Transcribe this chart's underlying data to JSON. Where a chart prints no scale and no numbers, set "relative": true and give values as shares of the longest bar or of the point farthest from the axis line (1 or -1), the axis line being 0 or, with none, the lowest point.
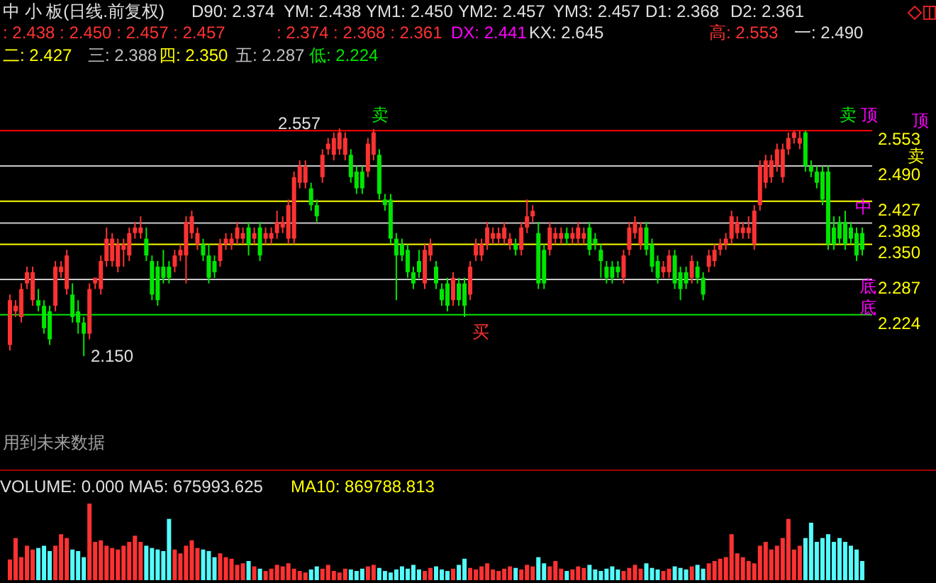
{
  "chart_data": [
    {
      "type": "candlestick",
      "title": "中 小 板(日线.前复权)",
      "categories": [
        null,
        null,
        null,
        null,
        null,
        null,
        null,
        null,
        null,
        null,
        null,
        null,
        null,
        null,
        null,
        null,
        null,
        null,
        null,
        null,
        null,
        null,
        null,
        null,
        null,
        null,
        null,
        null,
        null,
        null,
        null,
        null,
        null,
        null,
        null,
        null,
        null,
        null,
        null,
        null,
        null,
        null,
        null,
        null,
        null,
        null,
        null,
        null,
        null,
        null,
        null,
        null,
        null,
        null,
        null,
        null,
        null,
        null,
        null,
        null,
        null,
        null,
        null,
        null,
        null,
        null,
        null,
        null,
        null,
        null,
        null,
        null,
        null,
        null,
        null,
        null,
        null,
        null,
        null,
        null,
        null,
        null,
        null,
        null,
        null,
        null,
        null,
        null,
        null,
        null,
        null,
        null,
        null,
        null,
        null,
        null,
        null,
        null,
        null,
        null,
        null,
        null,
        null,
        null,
        null,
        null,
        null,
        null,
        null,
        null,
        null,
        null,
        null,
        null,
        null,
        null,
        null,
        null,
        null,
        null,
        null,
        null,
        null,
        null,
        null,
        null,
        null,
        null,
        null,
        null,
        null,
        null,
        null,
        null,
        null,
        null,
        null,
        null,
        null,
        null,
        null,
        null,
        null,
        null,
        null,
        null,
        null,
        null,
        null,
        null,
        null
      ],
      "ohlc": [
        [
          2.17,
          2.26,
          2.16,
          2.25
        ],
        [
          2.23,
          2.25,
          2.22,
          2.24
        ],
        [
          2.22,
          2.28,
          2.21,
          2.27
        ],
        [
          2.28,
          2.31,
          2.27,
          2.3
        ],
        [
          2.25,
          2.31,
          2.24,
          2.3
        ],
        [
          2.25,
          2.27,
          2.23,
          2.24
        ],
        [
          2.24,
          2.25,
          2.19,
          2.2
        ],
        [
          2.23,
          2.24,
          2.17,
          2.18
        ],
        [
          2.24,
          2.32,
          2.23,
          2.31
        ],
        [
          2.3,
          2.32,
          2.29,
          2.31
        ],
        [
          2.27,
          2.34,
          2.26,
          2.33
        ],
        [
          2.26,
          2.28,
          2.21,
          2.22
        ],
        [
          2.23,
          2.25,
          2.19,
          2.21
        ],
        [
          2.21,
          2.22,
          2.15,
          2.19
        ],
        [
          2.19,
          2.28,
          2.18,
          2.27
        ],
        [
          2.28,
          2.29,
          2.27,
          2.29
        ],
        [
          2.27,
          2.33,
          2.26,
          2.32
        ],
        [
          2.32,
          2.38,
          2.31,
          2.36
        ],
        [
          2.32,
          2.37,
          2.31,
          2.36
        ],
        [
          2.31,
          2.36,
          2.3,
          2.35
        ],
        [
          2.34,
          2.36,
          2.31,
          2.35
        ],
        [
          2.33,
          2.38,
          2.32,
          2.37
        ],
        [
          2.37,
          2.39,
          2.36,
          2.38
        ],
        [
          2.37,
          2.4,
          2.36,
          2.38
        ],
        [
          2.36,
          2.38,
          2.32,
          2.33
        ],
        [
          2.32,
          2.33,
          2.25,
          2.26
        ],
        [
          2.31,
          2.32,
          2.24,
          2.25
        ],
        [
          2.31,
          2.34,
          2.28,
          2.29
        ],
        [
          2.31,
          2.32,
          2.28,
          2.29
        ],
        [
          2.31,
          2.34,
          2.3,
          2.33
        ],
        [
          2.33,
          2.35,
          2.32,
          2.34
        ],
        [
          2.33,
          2.4,
          2.28,
          2.39
        ],
        [
          2.37,
          2.41,
          2.36,
          2.4
        ],
        [
          2.35,
          2.38,
          2.34,
          2.37
        ],
        [
          2.35,
          2.36,
          2.32,
          2.33
        ],
        [
          2.33,
          2.35,
          2.28,
          2.29
        ],
        [
          2.32,
          2.33,
          2.29,
          2.3
        ],
        [
          2.32,
          2.36,
          2.31,
          2.35
        ],
        [
          2.35,
          2.37,
          2.34,
          2.36
        ],
        [
          2.35,
          2.37,
          2.34,
          2.36
        ],
        [
          2.36,
          2.39,
          2.35,
          2.38
        ],
        [
          2.36,
          2.38,
          2.35,
          2.37
        ],
        [
          2.38,
          2.39,
          2.33,
          2.35
        ],
        [
          2.36,
          2.38,
          2.35,
          2.37
        ],
        [
          2.38,
          2.39,
          2.32,
          2.33
        ],
        [
          2.36,
          2.38,
          2.35,
          2.37
        ],
        [
          2.36,
          2.38,
          2.35,
          2.37
        ],
        [
          2.37,
          2.41,
          2.36,
          2.39
        ],
        [
          2.38,
          2.4,
          2.37,
          2.39
        ],
        [
          2.36,
          2.43,
          2.35,
          2.42
        ],
        [
          2.36,
          2.48,
          2.35,
          2.47
        ],
        [
          2.46,
          2.5,
          2.45,
          2.49
        ],
        [
          2.46,
          2.5,
          2.45,
          2.49
        ],
        [
          2.45,
          2.46,
          2.41,
          2.42
        ],
        [
          2.42,
          2.43,
          2.39,
          2.4
        ],
        [
          2.47,
          2.52,
          2.46,
          2.51
        ],
        [
          2.52,
          2.54,
          2.51,
          2.53
        ],
        [
          2.51,
          2.55,
          2.5,
          2.54
        ],
        [
          2.52,
          2.557,
          2.51,
          2.55
        ],
        [
          2.51,
          2.55,
          2.5,
          2.54
        ],
        [
          2.51,
          2.52,
          2.46,
          2.47
        ],
        [
          2.48,
          2.49,
          2.44,
          2.45
        ],
        [
          2.48,
          2.49,
          2.44,
          2.45
        ],
        [
          2.48,
          2.54,
          2.47,
          2.53
        ],
        [
          2.51,
          2.556,
          2.5,
          2.55
        ],
        [
          2.51,
          2.52,
          2.43,
          2.44
        ],
        [
          2.43,
          2.44,
          2.41,
          2.42
        ],
        [
          2.43,
          2.44,
          2.35,
          2.36
        ],
        [
          2.36,
          2.37,
          2.25,
          2.33
        ],
        [
          2.35,
          2.36,
          2.32,
          2.33
        ],
        [
          2.34,
          2.35,
          2.29,
          2.3
        ],
        [
          2.3,
          2.31,
          2.27,
          2.28
        ],
        [
          2.32,
          2.34,
          2.29,
          2.3
        ],
        [
          2.28,
          2.35,
          2.27,
          2.34
        ],
        [
          2.33,
          2.36,
          2.32,
          2.35
        ],
        [
          2.31,
          2.32,
          2.27,
          2.28
        ],
        [
          2.27,
          2.28,
          2.24,
          2.25
        ],
        [
          2.28,
          2.29,
          2.23,
          2.24
        ],
        [
          2.25,
          2.3,
          2.24,
          2.29
        ],
        [
          2.28,
          2.29,
          2.24,
          2.25
        ],
        [
          2.28,
          2.29,
          2.22,
          2.24
        ],
        [
          2.26,
          2.32,
          2.25,
          2.31
        ],
        [
          2.33,
          2.36,
          2.32,
          2.35
        ],
        [
          2.33,
          2.36,
          2.32,
          2.35
        ],
        [
          2.35,
          2.39,
          2.34,
          2.38
        ],
        [
          2.36,
          2.38,
          2.35,
          2.37
        ],
        [
          2.36,
          2.38,
          2.35,
          2.37
        ],
        [
          2.36,
          2.39,
          2.35,
          2.38
        ],
        [
          2.35,
          2.37,
          2.34,
          2.36
        ],
        [
          2.35,
          2.36,
          2.33,
          2.34
        ],
        [
          2.34,
          2.39,
          2.33,
          2.38
        ],
        [
          2.38,
          2.43,
          2.37,
          2.4
        ],
        [
          2.4,
          2.42,
          2.39,
          2.41
        ],
        [
          2.37,
          2.39,
          2.27,
          2.28
        ],
        [
          2.34,
          2.35,
          2.27,
          2.28
        ],
        [
          2.34,
          2.39,
          2.33,
          2.38
        ],
        [
          2.36,
          2.38,
          2.35,
          2.37
        ],
        [
          2.36,
          2.38,
          2.35,
          2.37
        ],
        [
          2.37,
          2.38,
          2.35,
          2.36
        ],
        [
          2.36,
          2.38,
          2.35,
          2.37
        ],
        [
          2.36,
          2.39,
          2.35,
          2.38
        ],
        [
          2.36,
          2.38,
          2.35,
          2.37
        ],
        [
          2.38,
          2.39,
          2.33,
          2.34
        ],
        [
          2.36,
          2.37,
          2.34,
          2.35
        ],
        [
          2.34,
          2.35,
          2.29,
          2.32
        ],
        [
          2.31,
          2.32,
          2.28,
          2.29
        ],
        [
          2.31,
          2.32,
          2.28,
          2.29
        ],
        [
          2.31,
          2.32,
          2.29,
          2.3
        ],
        [
          2.29,
          2.34,
          2.28,
          2.33
        ],
        [
          2.34,
          2.39,
          2.33,
          2.38
        ],
        [
          2.37,
          2.4,
          2.36,
          2.39
        ],
        [
          2.35,
          2.39,
          2.34,
          2.38
        ],
        [
          2.38,
          2.39,
          2.33,
          2.34
        ],
        [
          2.35,
          2.36,
          2.3,
          2.31
        ],
        [
          2.32,
          2.33,
          2.28,
          2.29
        ],
        [
          2.3,
          2.32,
          2.29,
          2.31
        ],
        [
          2.3,
          2.34,
          2.29,
          2.33
        ],
        [
          2.33,
          2.34,
          2.27,
          2.28
        ],
        [
          2.3,
          2.31,
          2.25,
          2.27
        ],
        [
          2.3,
          2.31,
          2.27,
          2.28
        ],
        [
          2.29,
          2.33,
          2.28,
          2.32
        ],
        [
          2.31,
          2.32,
          2.28,
          2.29
        ],
        [
          2.29,
          2.3,
          2.25,
          2.26
        ],
        [
          2.31,
          2.34,
          2.3,
          2.33
        ],
        [
          2.32,
          2.35,
          2.31,
          2.34
        ],
        [
          2.34,
          2.36,
          2.33,
          2.35
        ],
        [
          2.35,
          2.37,
          2.34,
          2.36
        ],
        [
          2.36,
          2.41,
          2.35,
          2.4
        ],
        [
          2.37,
          2.4,
          2.36,
          2.39
        ],
        [
          2.37,
          2.39,
          2.36,
          2.38
        ],
        [
          2.37,
          2.4,
          2.36,
          2.38
        ],
        [
          2.35,
          2.42,
          2.34,
          2.41
        ],
        [
          2.42,
          2.5,
          2.41,
          2.49
        ],
        [
          2.46,
          2.51,
          2.45,
          2.5
        ],
        [
          2.47,
          2.51,
          2.46,
          2.5
        ],
        [
          2.49,
          2.53,
          2.48,
          2.52
        ],
        [
          2.47,
          2.53,
          2.46,
          2.52
        ],
        [
          2.52,
          2.55,
          2.51,
          2.54
        ],
        [
          2.54,
          2.553,
          2.53,
          2.55
        ],
        [
          2.53,
          2.553,
          2.52,
          2.54
        ],
        [
          2.55,
          2.553,
          2.48,
          2.49
        ],
        [
          2.49,
          2.5,
          2.47,
          2.48
        ],
        [
          2.48,
          2.49,
          2.45,
          2.46
        ],
        [
          2.48,
          2.49,
          2.42,
          2.43
        ],
        [
          2.48,
          2.49,
          2.34,
          2.35
        ],
        [
          2.38,
          2.4,
          2.34,
          2.35
        ],
        [
          2.39,
          2.4,
          2.35,
          2.36
        ],
        [
          2.39,
          2.41,
          2.34,
          2.35
        ],
        [
          2.38,
          2.39,
          2.35,
          2.36
        ],
        [
          2.37,
          2.38,
          2.32,
          2.33
        ],
        [
          2.37,
          2.38,
          2.33,
          2.34
        ]
      ],
      "colors": [
        "#ff3232",
        "#ff3232",
        "#ff3232",
        "#ff3232",
        "#ff3232",
        "#00e600",
        "#00e600",
        "#00e600",
        "#ff3232",
        "#ff3232",
        "#ff3232",
        "#00e600",
        "#00e600",
        "#00e600",
        "#ff3232",
        "#ff3232",
        "#ff3232",
        "#ff3232",
        "#ff3232",
        "#ff3232",
        "#ff3232",
        "#ff3232",
        "#ff3232",
        "#ff3232",
        "#00e600",
        "#00e600",
        "#00e600",
        "#00e600",
        "#00e600",
        "#ff3232",
        "#ff3232",
        "#ff3232",
        "#ff3232",
        "#ff3232",
        "#00e600",
        "#00e600",
        "#00e600",
        "#ff3232",
        "#ff3232",
        "#ff3232",
        "#ff3232",
        "#ff3232",
        "#00e600",
        "#ff3232",
        "#00e600",
        "#ff3232",
        "#ff3232",
        "#ff3232",
        "#ff3232",
        "#ff3232",
        "#ff3232",
        "#ff3232",
        "#ff3232",
        "#00e600",
        "#00e600",
        "#ff3232",
        "#ff3232",
        "#ff3232",
        "#ff3232",
        "#ff3232",
        "#00e600",
        "#00e600",
        "#00e600",
        "#ff3232",
        "#ff3232",
        "#00e600",
        "#00e600",
        "#00e600",
        "#00e600",
        "#00e600",
        "#00e600",
        "#00e600",
        "#00e600",
        "#ff3232",
        "#ff3232",
        "#00e600",
        "#00e600",
        "#00e600",
        "#ff3232",
        "#00e600",
        "#00e600",
        "#ff3232",
        "#ff3232",
        "#ff3232",
        "#ff3232",
        "#ff3232",
        "#ff3232",
        "#ff3232",
        "#ff3232",
        "#00e600",
        "#ff3232",
        "#ff3232",
        "#ff3232",
        "#00e600",
        "#00e600",
        "#ff3232",
        "#ff3232",
        "#ff3232",
        "#00e600",
        "#ff3232",
        "#ff3232",
        "#ff3232",
        "#00e600",
        "#00e600",
        "#00e600",
        "#00e600",
        "#00e600",
        "#00e600",
        "#ff3232",
        "#ff3232",
        "#ff3232",
        "#ff3232",
        "#00e600",
        "#00e600",
        "#00e600",
        "#ff3232",
        "#ff3232",
        "#00e600",
        "#00e600",
        "#00e600",
        "#ff3232",
        "#00e600",
        "#00e600",
        "#ff3232",
        "#ff3232",
        "#ff3232",
        "#ff3232",
        "#ff3232",
        "#ff3232",
        "#ff3232",
        "#ff3232",
        "#ff3232",
        "#ff3232",
        "#ff3232",
        "#ff3232",
        "#ff3232",
        "#ff3232",
        "#ff3232",
        "#ff3232",
        "#ff3232",
        "#00e600",
        "#00e600",
        "#00e600",
        "#00e600",
        "#00e600",
        "#00e600",
        "#00e600",
        "#00e600",
        "#00e600",
        "#00e600",
        "#00e600"
      ],
      "ylim": [
        1.97,
        2.66
      ],
      "ref_lines": [
        {
          "axis": "y",
          "value": 2.553,
          "label": "2.553",
          "color": "#ff0000"
        },
        {
          "axis": "y",
          "value": 2.49,
          "label": "2.490",
          "color": "#c8c8c8"
        },
        {
          "axis": "y",
          "value": 2.427,
          "label": "2.427",
          "color": "#ffff00"
        },
        {
          "axis": "y",
          "value": 2.388,
          "label": "2.388",
          "color": "#c8c8c8"
        },
        {
          "axis": "y",
          "value": 2.35,
          "label": "2.350",
          "color": "#ffff00"
        },
        {
          "axis": "y",
          "value": 2.287,
          "label": "2.287",
          "color": "#c8c8c8"
        },
        {
          "axis": "y",
          "value": 2.224,
          "label": "2.224",
          "color": "#00e600"
        }
      ],
      "annotations": [
        "D90: 2.374",
        "YM: 2.438",
        "YM1: 2.450",
        "YM2: 2.457",
        "YM3: 2.457",
        "D1: 2.368",
        "D2: 2.361",
        ": 2.438 : 2.450 : 2.457 : 2.457",
        ": 2.374 : 2.368 : 2.361",
        "DX: 2.441",
        "KX: 2.645",
        "高: 2.553",
        "一: 2.490",
        "二: 2.427",
        "三: 2.388",
        "四: 2.350",
        "五: 2.287",
        "低: 2.224",
        "2.557",
        "2.150",
        "卖",
        "卖",
        "顶",
        "买",
        "中",
        "底",
        "顶",
        "卖",
        "底",
        "用到未来数据"
      ]
    },
    {
      "type": "bar",
      "relative": true,
      "categories": [
        null,
        null,
        null,
        null,
        null,
        null,
        null,
        null,
        null,
        null,
        null,
        null,
        null,
        null,
        null,
        null,
        null,
        null,
        null,
        null,
        null,
        null,
        null,
        null,
        null,
        null,
        null,
        null,
        null,
        null,
        null,
        null,
        null,
        null,
        null,
        null,
        null,
        null,
        null,
        null,
        null,
        null,
        null,
        null,
        null,
        null,
        null,
        null,
        null,
        null,
        null,
        null,
        null,
        null,
        null,
        null,
        null,
        null,
        null,
        null,
        null,
        null,
        null,
        null,
        null,
        null,
        null,
        null,
        null,
        null,
        null,
        null,
        null,
        null,
        null,
        null,
        null,
        null,
        null,
        null,
        null,
        null,
        null,
        null,
        null,
        null,
        null,
        null,
        null,
        null,
        null,
        null,
        null,
        null,
        null,
        null,
        null,
        null,
        null,
        null,
        null,
        null,
        null,
        null,
        null,
        null,
        null,
        null,
        null,
        null,
        null,
        null,
        null,
        null,
        null,
        null,
        null,
        null,
        null,
        null,
        null,
        null,
        null,
        null,
        null,
        null,
        null,
        null,
        null,
        null,
        null,
        null,
        null,
        null,
        null,
        null,
        null,
        null,
        null,
        null,
        null,
        null,
        null,
        null,
        null,
        null,
        null,
        null,
        null,
        null,
        null
      ],
      "values": [
        0.27,
        0.55,
        0.3,
        0.45,
        0.4,
        0.42,
        0.45,
        0.38,
        0.45,
        0.6,
        0.55,
        0.4,
        0.38,
        0.3,
        1.0,
        0.5,
        0.52,
        0.45,
        0.42,
        0.4,
        0.45,
        0.5,
        0.58,
        0.5,
        0.45,
        0.42,
        0.4,
        0.38,
        0.8,
        0.4,
        0.35,
        0.45,
        0.52,
        0.42,
        0.4,
        0.38,
        0.3,
        0.35,
        0.3,
        0.28,
        0.2,
        0.22,
        0.25,
        0.18,
        0.15,
        0.12,
        0.15,
        0.2,
        0.18,
        0.22,
        0.15,
        0.12,
        0.1,
        0.14,
        0.18,
        0.15,
        0.2,
        0.12,
        0.1,
        0.15,
        0.14,
        0.12,
        0.15,
        0.18,
        0.2,
        0.16,
        0.12,
        0.1,
        0.14,
        0.18,
        0.15,
        0.2,
        0.14,
        0.12,
        0.16,
        0.18,
        0.14,
        0.12,
        0.15,
        0.2,
        0.28,
        0.16,
        0.14,
        0.18,
        0.22,
        0.14,
        0.12,
        0.15,
        0.18,
        0.16,
        0.14,
        0.2,
        0.18,
        0.3,
        0.22,
        0.18,
        0.25,
        0.15,
        0.12,
        0.14,
        0.18,
        0.16,
        0.2,
        0.14,
        0.12,
        0.15,
        0.18,
        0.14,
        0.12,
        0.16,
        0.2,
        0.15,
        0.22,
        0.16,
        0.14,
        0.12,
        0.15,
        0.18,
        0.16,
        0.14,
        0.18,
        0.2,
        0.15,
        0.22,
        0.25,
        0.28,
        0.3,
        0.6,
        0.35,
        0.3,
        0.25,
        0.22,
        0.45,
        0.5,
        0.4,
        0.45,
        0.55,
        0.8,
        0.4,
        0.45,
        0.55,
        0.75,
        0.5,
        0.55,
        0.6,
        0.5,
        0.55,
        0.5,
        0.45,
        0.4,
        0.25
      ],
      "colors": [
        "#ff3232",
        "#ff3232",
        "#ff3232",
        "#ff3232",
        "#ff3232",
        "#54fcfc",
        "#54fcfc",
        "#54fcfc",
        "#ff3232",
        "#ff3232",
        "#ff3232",
        "#54fcfc",
        "#54fcfc",
        "#54fcfc",
        "#ff3232",
        "#ff3232",
        "#ff3232",
        "#ff3232",
        "#ff3232",
        "#ff3232",
        "#ff3232",
        "#ff3232",
        "#ff3232",
        "#ff3232",
        "#54fcfc",
        "#54fcfc",
        "#54fcfc",
        "#54fcfc",
        "#54fcfc",
        "#ff3232",
        "#ff3232",
        "#ff3232",
        "#ff3232",
        "#ff3232",
        "#54fcfc",
        "#54fcfc",
        "#54fcfc",
        "#ff3232",
        "#ff3232",
        "#ff3232",
        "#ff3232",
        "#ff3232",
        "#54fcfc",
        "#ff3232",
        "#54fcfc",
        "#ff3232",
        "#ff3232",
        "#ff3232",
        "#ff3232",
        "#ff3232",
        "#ff3232",
        "#ff3232",
        "#ff3232",
        "#54fcfc",
        "#54fcfc",
        "#ff3232",
        "#ff3232",
        "#ff3232",
        "#ff3232",
        "#ff3232",
        "#54fcfc",
        "#54fcfc",
        "#54fcfc",
        "#ff3232",
        "#ff3232",
        "#54fcfc",
        "#54fcfc",
        "#54fcfc",
        "#54fcfc",
        "#54fcfc",
        "#54fcfc",
        "#54fcfc",
        "#54fcfc",
        "#ff3232",
        "#ff3232",
        "#54fcfc",
        "#54fcfc",
        "#54fcfc",
        "#ff3232",
        "#54fcfc",
        "#54fcfc",
        "#ff3232",
        "#ff3232",
        "#ff3232",
        "#ff3232",
        "#ff3232",
        "#ff3232",
        "#ff3232",
        "#ff3232",
        "#54fcfc",
        "#ff3232",
        "#ff3232",
        "#ff3232",
        "#54fcfc",
        "#54fcfc",
        "#ff3232",
        "#ff3232",
        "#ff3232",
        "#54fcfc",
        "#ff3232",
        "#ff3232",
        "#ff3232",
        "#54fcfc",
        "#54fcfc",
        "#54fcfc",
        "#54fcfc",
        "#54fcfc",
        "#54fcfc",
        "#ff3232",
        "#ff3232",
        "#ff3232",
        "#ff3232",
        "#54fcfc",
        "#54fcfc",
        "#54fcfc",
        "#ff3232",
        "#ff3232",
        "#54fcfc",
        "#54fcfc",
        "#54fcfc",
        "#ff3232",
        "#54fcfc",
        "#54fcfc",
        "#ff3232",
        "#ff3232",
        "#ff3232",
        "#ff3232",
        "#ff3232",
        "#ff3232",
        "#ff3232",
        "#ff3232",
        "#ff3232",
        "#ff3232",
        "#ff3232",
        "#ff3232",
        "#ff3232",
        "#ff3232",
        "#ff3232",
        "#ff3232",
        "#ff3232",
        "#54fcfc",
        "#54fcfc",
        "#54fcfc",
        "#54fcfc",
        "#54fcfc",
        "#54fcfc",
        "#54fcfc",
        "#54fcfc",
        "#54fcfc",
        "#54fcfc",
        "#54fcfc"
      ],
      "annotations": [
        "VOLUME: 0.000  MA5: 675993.625",
        "MA10: 869788.813"
      ]
    }
  ]
}
